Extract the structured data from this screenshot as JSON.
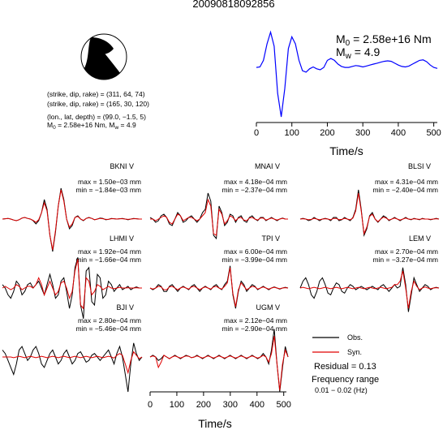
{
  "event_id": "20090818092856",
  "mechanism": {
    "line1": "(strike, dip, rake) = (311, 64, 74)",
    "line2": "(strike, dip, rake) = (165, 30, 120)",
    "line3": "(lon., lat, depth) = (99.0, −1.5, 5)",
    "m0_prefix": "M",
    "m0_sub": "0",
    "m0_value": " = 2.58e+16 Nm, M",
    "mw_sub": "w",
    "mw_value": " = 4.9"
  },
  "stf": {
    "m0_label": "M",
    "m0_sub": "0",
    "m0_text": " = 2.58e+16 Nm",
    "mw_label": "M",
    "mw_sub": "w",
    "mw_text": " = 4.9",
    "xlabel": "Time/s",
    "ticks": [
      "0",
      "100",
      "200",
      "300",
      "400",
      "500"
    ],
    "color": "#0000ff"
  },
  "stations": [
    {
      "name": "BKNI V",
      "max": "max = 1.50e−03 mm",
      "min": "min = −1.84e−03 mm"
    },
    {
      "name": "MNAI V",
      "max": "max = 4.18e−04 mm",
      "min": "min = −2.37e−04 mm"
    },
    {
      "name": "BLSI V",
      "max": "max = 4.31e−04 mm",
      "min": "min = −2.40e−04 mm"
    },
    {
      "name": "LHMI V",
      "max": "max = 1.92e−04 mm",
      "min": "min = −1.66e−04 mm"
    },
    {
      "name": "TPI V",
      "max": "max = 6.00e−04 mm",
      "min": "min = −3.99e−04 mm"
    },
    {
      "name": "LEM V",
      "max": "max = 2.70e−04 mm",
      "min": "min = −3.27e−04 mm"
    },
    {
      "name": "BJI V",
      "max": "max = 2.80e−04 mm",
      "min": "min = −5.46e−04 mm"
    },
    {
      "name": "UGM V",
      "max": "max = 2.12e−04 mm",
      "min": "min = −2.90e−04 mm"
    }
  ],
  "legend": {
    "obs": "Obs.",
    "syn": "Syn.",
    "obs_color": "#000000",
    "syn_color": "#e00000",
    "residual": "Residual = 0.13",
    "freq_title": "Frequency range",
    "freq_value": "0.01 − 0.02 (Hz)"
  },
  "bottom_axis": {
    "xlabel": "Time/s",
    "ticks": [
      "0",
      "100",
      "200",
      "300",
      "400",
      "500"
    ]
  },
  "chart_data": [
    {
      "type": "line",
      "panel": "source time function",
      "xlabel": "Time/s",
      "xlim": [
        0,
        510
      ],
      "x_ticks": [
        0,
        100,
        200,
        300,
        400,
        500
      ],
      "series": [
        {
          "x": [
            0,
            10,
            20,
            30,
            40,
            50,
            60,
            70,
            80,
            90,
            100,
            110,
            120,
            130,
            140,
            150,
            160,
            170,
            180,
            190,
            200,
            210,
            220,
            230,
            240,
            250,
            260,
            270,
            280,
            290,
            300,
            310,
            320,
            330,
            340,
            350,
            360,
            370,
            380,
            390,
            400,
            410,
            420,
            430,
            440,
            450,
            460,
            470,
            480,
            490,
            500,
            510
          ],
          "y": [
            0.05,
            0.06,
            0.2,
            0.55,
            0.8,
            0.5,
            -0.5,
            -1.0,
            -0.4,
            0.45,
            0.7,
            0.55,
            0.2,
            -0.02,
            -0.05,
            0.02,
            0.06,
            0.02,
            0.0,
            0.05,
            0.2,
            0.24,
            0.2,
            0.12,
            0.07,
            0.05,
            0.05,
            0.07,
            0.09,
            0.08,
            0.06,
            0.08,
            0.1,
            0.12,
            0.14,
            0.16,
            0.18,
            0.19,
            0.18,
            0.14,
            0.1,
            0.07,
            0.06,
            0.08,
            0.12,
            0.16,
            0.2,
            0.21,
            0.17,
            0.1,
            0.05,
            0.03
          ]
        }
      ]
    },
    {
      "type": "line",
      "panel": "waveform comparison",
      "xlabel": "Time/s",
      "xlim": [
        0,
        510
      ],
      "x_ticks": [
        0,
        100,
        200,
        300,
        400,
        500
      ],
      "waveforms": [
        {
          "station": "BKNI V",
          "obs": [
            0,
            0.01,
            0.02,
            0.0,
            -0.03,
            -0.05,
            -0.02,
            0.03,
            0.05,
            0.02,
            0.0,
            -0.05,
            -0.15,
            -0.05,
            0.2,
            0.6,
            0.3,
            -0.5,
            -1.0,
            -0.4,
            0.4,
            0.95,
            0.6,
            0.0,
            -0.3,
            -0.2,
            0.05,
            0.1,
            0.0,
            -0.05,
            0.02,
            0.05,
            0.02,
            -0.02,
            0.0,
            0.03,
            0.02,
            -0.02,
            -0.01,
            0.02,
            0.01,
            0.0,
            0.01,
            0.02,
            0.0,
            -0.02,
            0.0,
            0.02,
            0.01,
            0.0,
            0.0
          ],
          "syn": [
            0,
            0.01,
            0.02,
            0.0,
            -0.03,
            -0.05,
            -0.02,
            0.03,
            0.05,
            0.02,
            0.0,
            -0.04,
            -0.1,
            -0.02,
            0.2,
            0.5,
            0.25,
            -0.5,
            -0.95,
            -0.35,
            0.4,
            0.9,
            0.55,
            0.0,
            -0.25,
            -0.15,
            0.05,
            0.08,
            0.0,
            -0.04,
            0.02,
            0.04,
            0.02,
            -0.02,
            0.0,
            0.02,
            0.01,
            -0.01,
            -0.01,
            0.01,
            0.01,
            0.0,
            0.01,
            0.01,
            0.0,
            -0.01,
            0.0,
            0.01,
            0.01,
            0.0,
            0.0
          ]
        },
        {
          "station": "MNAI V",
          "obs": [
            0.05,
            0.0,
            -0.1,
            -0.05,
            0.1,
            0.15,
            0.05,
            -0.15,
            -0.2,
            0.0,
            0.2,
            0.1,
            -0.1,
            -0.05,
            0.05,
            0.1,
            0.0,
            -0.1,
            0.0,
            0.2,
            0.3,
            0.8,
            0.55,
            -0.5,
            -0.6,
            0.4,
            0.2,
            -0.2,
            -0.1,
            0.15,
            0.1,
            -0.1,
            0.05,
            0.1,
            -0.05,
            -0.1,
            0.05,
            0.1,
            0.0,
            -0.05,
            0.05,
            0.05,
            -0.05,
            0.0,
            0.05,
            0.0,
            -0.05,
            0.0,
            0.03,
            0.0,
            0.0
          ],
          "syn": [
            0.0,
            0.0,
            -0.05,
            0.0,
            0.05,
            0.1,
            0.05,
            -0.1,
            -0.15,
            0.0,
            0.15,
            0.1,
            -0.05,
            0.0,
            0.05,
            0.05,
            0.0,
            -0.05,
            0.0,
            0.1,
            0.2,
            0.6,
            0.4,
            -0.45,
            -0.5,
            0.3,
            0.15,
            -0.15,
            -0.05,
            0.1,
            0.05,
            -0.05,
            0.03,
            0.05,
            -0.03,
            -0.05,
            0.03,
            0.05,
            0.0,
            -0.03,
            0.03,
            0.03,
            -0.03,
            0.0,
            0.03,
            0.0,
            -0.03,
            0.0,
            0.02,
            0.0,
            0.0
          ]
        },
        {
          "station": "BLSI V",
          "obs": [
            0.0,
            0.02,
            0.0,
            -0.05,
            -0.02,
            0.05,
            0.0,
            -0.05,
            0.0,
            0.02,
            0.0,
            -0.05,
            0.05,
            0.05,
            -0.05,
            -0.02,
            0.05,
            0.0,
            -0.05,
            0.05,
            0.3,
            0.9,
            0.3,
            -0.5,
            -0.3,
            0.1,
            0.2,
            0.0,
            -0.1,
            0.0,
            0.1,
            0.05,
            -0.05,
            0.0,
            0.05,
            0.0,
            -0.05,
            0.0,
            0.05,
            0.0,
            -0.02,
            0.02,
            0.0,
            -0.02,
            0.02,
            0.0,
            0.0,
            -0.02,
            0.0,
            0.02,
            0.0
          ],
          "syn": [
            0.0,
            0.01,
            0.0,
            -0.02,
            -0.01,
            0.02,
            0.0,
            -0.02,
            0.0,
            0.01,
            0.0,
            -0.02,
            0.02,
            0.02,
            -0.02,
            -0.01,
            0.02,
            0.0,
            -0.02,
            0.03,
            0.25,
            0.8,
            0.25,
            -0.45,
            -0.25,
            0.08,
            0.15,
            0.0,
            -0.08,
            0.0,
            0.06,
            0.03,
            -0.03,
            0.0,
            0.03,
            0.0,
            -0.03,
            0.0,
            0.03,
            0.0,
            -0.01,
            0.01,
            0.0,
            -0.01,
            0.01,
            0.0,
            0.0,
            -0.01,
            0.0,
            0.01,
            0.0
          ]
        },
        {
          "station": "LHMI V",
          "obs": [
            0.1,
            0.0,
            -0.2,
            -0.3,
            -0.1,
            0.2,
            0.1,
            -0.2,
            -0.1,
            0.1,
            0.15,
            0.0,
            0.1,
            0.2,
            0.0,
            -0.2,
            0.1,
            0.4,
            0.1,
            -0.3,
            -0.2,
            0.2,
            0.3,
            -0.1,
            -0.6,
            -0.2,
            0.6,
            0.9,
            -0.5,
            -0.9,
            0.5,
            0.6,
            -0.4,
            -0.5,
            0.4,
            0.3,
            -0.3,
            -0.2,
            0.2,
            0.1,
            -0.1,
            0.0,
            0.1,
            -0.05,
            0.0,
            0.05,
            -0.05,
            0.0,
            0.03,
            0.0,
            0.0
          ],
          "syn": [
            0.0,
            0.05,
            0.0,
            -0.05,
            0.0,
            0.1,
            0.05,
            -0.05,
            0.0,
            0.05,
            0.05,
            0.0,
            0.1,
            0.3,
            0.1,
            -0.2,
            0.0,
            0.2,
            0.0,
            -0.2,
            -0.1,
            0.15,
            0.2,
            0.0,
            -0.3,
            -0.1,
            0.5,
            0.85,
            -0.5,
            -0.6,
            0.3,
            0.2,
            -0.2,
            -0.1,
            0.1,
            0.05,
            -0.05,
            0.0,
            0.05,
            0.0,
            -0.02,
            0.0,
            0.02,
            0.0,
            0.0,
            0.01,
            0.0,
            0.0,
            0.01,
            0.0,
            0.0
          ]
        },
        {
          "station": "TPI V",
          "obs": [
            0.0,
            -0.05,
            0.0,
            0.1,
            0.05,
            -0.1,
            -0.1,
            0.05,
            0.1,
            0.0,
            -0.1,
            0.0,
            0.05,
            0.0,
            -0.05,
            0.05,
            0.1,
            0.0,
            -0.1,
            0.0,
            0.05,
            0.0,
            -0.05,
            0.05,
            0.1,
            0.0,
            -0.05,
            0.1,
            0.2,
            0.65,
            -0.2,
            -0.6,
            -0.1,
            0.2,
            0.1,
            -0.1,
            0.0,
            0.1,
            0.05,
            -0.05,
            0.0,
            0.05,
            0.0,
            -0.05,
            0.0,
            0.03,
            0.0,
            -0.03,
            0.0,
            0.02,
            0.0
          ],
          "syn": [
            0.0,
            -0.03,
            0.0,
            0.05,
            0.03,
            -0.05,
            -0.05,
            0.03,
            0.05,
            0.0,
            -0.05,
            0.0,
            0.03,
            0.0,
            -0.03,
            0.03,
            0.05,
            0.0,
            -0.05,
            0.0,
            0.03,
            0.0,
            -0.03,
            0.03,
            0.05,
            0.0,
            -0.03,
            0.05,
            0.15,
            0.6,
            -0.15,
            -0.55,
            -0.05,
            0.15,
            0.05,
            -0.05,
            0.0,
            0.05,
            0.03,
            -0.03,
            0.0,
            0.03,
            0.0,
            -0.03,
            0.0,
            0.02,
            0.0,
            -0.02,
            0.0,
            0.01,
            0.0
          ]
        },
        {
          "station": "LEM V",
          "obs": [
            0.0,
            0.2,
            0.3,
            0.1,
            -0.2,
            -0.3,
            -0.1,
            0.2,
            0.3,
            0.1,
            -0.15,
            -0.2,
            0.0,
            0.15,
            0.1,
            -0.1,
            -0.15,
            0.0,
            0.1,
            0.05,
            -0.05,
            0.0,
            0.05,
            0.0,
            -0.05,
            0.0,
            0.05,
            0.0,
            -0.05,
            0.05,
            0.1,
            0.0,
            -0.1,
            0.0,
            0.1,
            0.0,
            0.05,
            0.6,
            0.1,
            -0.7,
            -0.2,
            0.3,
            0.1,
            -0.1,
            0.0,
            0.1,
            0.05,
            -0.05,
            0.0,
            0.02,
            0.0
          ],
          "syn": [
            0.0,
            0.02,
            0.0,
            -0.02,
            0.0,
            0.02,
            0.0,
            -0.02,
            0.0,
            0.02,
            0.0,
            -0.02,
            0.0,
            0.02,
            0.0,
            -0.02,
            0.0,
            0.02,
            0.0,
            -0.02,
            0.0,
            0.02,
            0.0,
            -0.02,
            0.0,
            0.02,
            0.0,
            -0.02,
            0.0,
            0.02,
            0.0,
            -0.02,
            0.0,
            0.02,
            0.1,
            0.1,
            0.2,
            0.5,
            0.0,
            -0.6,
            -0.1,
            0.2,
            0.05,
            -0.05,
            0.0,
            0.03,
            0.0,
            -0.02,
            0.0,
            0.01,
            0.0
          ]
        },
        {
          "station": "BJI V",
          "obs": [
            0.2,
            0.1,
            -0.1,
            -0.3,
            -0.5,
            -0.2,
            0.2,
            0.3,
            0.1,
            -0.1,
            0.0,
            0.2,
            0.3,
            0.1,
            -0.2,
            -0.3,
            -0.1,
            0.1,
            0.2,
            0.0,
            -0.2,
            -0.1,
            0.1,
            0.2,
            0.0,
            -0.2,
            -0.1,
            0.1,
            0.15,
            0.0,
            -0.15,
            -0.1,
            0.05,
            0.1,
            0.0,
            -0.1,
            0.0,
            0.1,
            0.2,
            0.0,
            -0.2,
            0.1,
            0.3,
            0.0,
            -0.5,
            -1.0,
            -0.2,
            0.4,
            0.1,
            -0.1,
            0.0
          ],
          "syn": [
            0.0,
            0.0,
            0.0,
            0.0,
            -0.02,
            0.0,
            0.02,
            0.0,
            -0.02,
            0.0,
            0.02,
            0.0,
            -0.02,
            0.0,
            0.02,
            0.0,
            -0.02,
            0.0,
            0.02,
            0.0,
            -0.02,
            0.0,
            0.02,
            0.0,
            -0.02,
            0.0,
            0.02,
            0.0,
            -0.02,
            0.0,
            0.02,
            0.0,
            -0.02,
            0.0,
            0.02,
            0.0,
            -0.02,
            0.0,
            0.02,
            0.0,
            -0.03,
            0.05,
            0.1,
            0.05,
            -0.2,
            -0.45,
            -0.1,
            0.15,
            0.05,
            -0.05,
            0.0
          ]
        },
        {
          "station": "UGM V",
          "obs": [
            0.0,
            0.05,
            0.0,
            -0.1,
            -0.05,
            0.05,
            0.0,
            -0.05,
            0.0,
            0.05,
            0.0,
            -0.05,
            0.0,
            0.05,
            0.02,
            -0.02,
            0.0,
            0.05,
            0.0,
            -0.05,
            0.0,
            0.05,
            0.0,
            -0.05,
            0.0,
            0.05,
            0.0,
            -0.05,
            0.0,
            0.05,
            0.0,
            -0.05,
            0.0,
            0.05,
            0.0,
            -0.05,
            0.0,
            0.05,
            0.0,
            -0.05,
            0.0,
            0.1,
            0.0,
            -0.2,
            0.2,
            0.8,
            -0.2,
            -1.0,
            -0.3,
            0.3,
            0.0
          ],
          "syn": [
            0.0,
            0.03,
            0.0,
            -0.3,
            -0.15,
            0.05,
            0.0,
            -0.05,
            0.0,
            0.03,
            0.0,
            -0.03,
            0.0,
            0.03,
            0.02,
            -0.02,
            0.0,
            0.03,
            0.0,
            -0.03,
            0.0,
            0.03,
            0.0,
            -0.03,
            0.0,
            0.03,
            0.0,
            -0.03,
            0.0,
            0.03,
            0.0,
            -0.03,
            0.0,
            0.03,
            0.0,
            -0.03,
            0.0,
            0.03,
            0.0,
            -0.03,
            0.0,
            0.05,
            0.0,
            -0.15,
            0.1,
            0.6,
            -0.2,
            -0.95,
            -0.2,
            0.2,
            0.0
          ]
        }
      ]
    }
  ]
}
